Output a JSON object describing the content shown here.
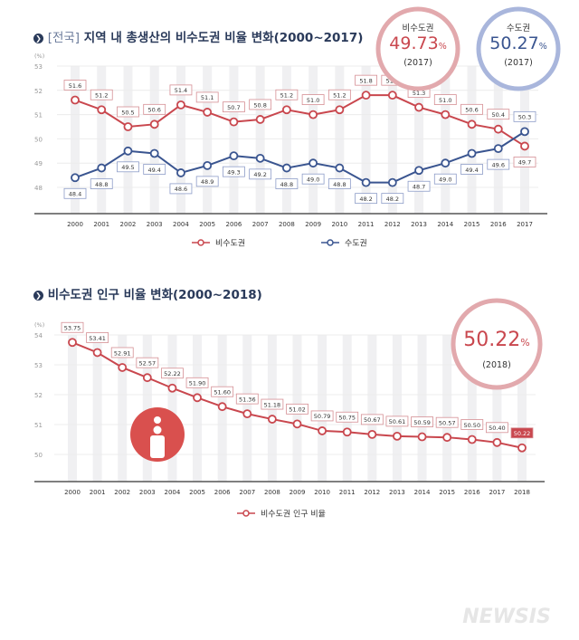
{
  "chart_data": [
    {
      "type": "line",
      "title_prefix": "[전국]",
      "title": "지역 내 총생산의 비수도권 비율 변화(2000~2017)",
      "ylabel": "(%)",
      "ylim": [
        48,
        53
      ],
      "yticks": [
        "53",
        "52",
        "51",
        "50",
        "49",
        "48"
      ],
      "categories": [
        "2000",
        "2001",
        "2002",
        "2003",
        "2004",
        "2005",
        "2006",
        "2007",
        "2008",
        "2009",
        "2010",
        "2011",
        "2012",
        "2013",
        "2014",
        "2015",
        "2016",
        "2017"
      ],
      "series": [
        {
          "name": "비수도권",
          "color": "#c9474e",
          "values": [
            51.6,
            51.2,
            50.5,
            50.6,
            51.4,
            51.1,
            50.7,
            50.8,
            51.2,
            51.0,
            51.2,
            51.8,
            51.8,
            51.3,
            51.0,
            50.6,
            50.4,
            49.7
          ],
          "labels": [
            "51.6",
            "51.2",
            "50.5",
            "50.6",
            "51.4",
            "51.1",
            "50.7",
            "50.8",
            "51.2",
            "51.0",
            "51.2",
            "51.8",
            "51.8",
            "51.3",
            "51.0",
            "50.6",
            "50.4",
            "49.7"
          ]
        },
        {
          "name": "수도권",
          "color": "#3a5590",
          "values": [
            48.4,
            48.8,
            49.5,
            49.4,
            48.6,
            48.9,
            49.3,
            49.2,
            48.8,
            49.0,
            48.8,
            48.2,
            48.2,
            48.7,
            49.0,
            49.4,
            49.6,
            50.3
          ],
          "labels": [
            "48.4",
            "48.8",
            "49.5",
            "49.4",
            "48.6",
            "48.9",
            "49.3",
            "49.2",
            "48.8",
            "49.0",
            "48.8",
            "48.2",
            "48.2",
            "48.7",
            "49.0",
            "49.4",
            "49.6",
            "50.3"
          ]
        }
      ],
      "legend": "bottom",
      "callouts": [
        {
          "label": "비수도권",
          "value": "49.73",
          "unit": "%",
          "year": "(2017)",
          "color": "#c9474e",
          "ring": "#e2a9ad"
        },
        {
          "label": "수도권",
          "value": "50.27",
          "unit": "%",
          "year": "(2017)",
          "color": "#3a5590",
          "ring": "#a9b6dc"
        }
      ]
    },
    {
      "type": "line",
      "title": "비수도권 인구 비율 변화(2000~2018)",
      "ylabel": "(%)",
      "ylim": [
        50,
        54
      ],
      "yticks": [
        "54",
        "53",
        "52",
        "51",
        "50"
      ],
      "categories": [
        "2000",
        "2001",
        "2002",
        "2003",
        "2004",
        "2005",
        "2006",
        "2007",
        "2008",
        "2009",
        "2010",
        "2011",
        "2012",
        "2013",
        "2014",
        "2015",
        "2016",
        "2017",
        "2018"
      ],
      "series": [
        {
          "name": "비수도권 인구 비율",
          "color": "#c9474e",
          "values": [
            53.75,
            53.41,
            52.91,
            52.57,
            52.22,
            51.9,
            51.6,
            51.36,
            51.18,
            51.02,
            50.79,
            50.75,
            50.67,
            50.61,
            50.59,
            50.57,
            50.5,
            50.4,
            50.22
          ],
          "labels": [
            "53.75",
            "53.41",
            "52.91",
            "52.57",
            "52.22",
            "51.90",
            "51.60",
            "51.36",
            "51.18",
            "51.02",
            "50.79",
            "50.75",
            "50.67",
            "50.61",
            "50.59",
            "50.57",
            "50.50",
            "50.40",
            "50.22"
          ]
        }
      ],
      "legend": "bottom",
      "callouts": [
        {
          "value": "50.22",
          "unit": "%",
          "year": "(2018)",
          "color": "#c9474e",
          "ring": "#e2a9ad"
        }
      ],
      "icon": "person-location-icon"
    }
  ],
  "watermark": "NEWSIS"
}
